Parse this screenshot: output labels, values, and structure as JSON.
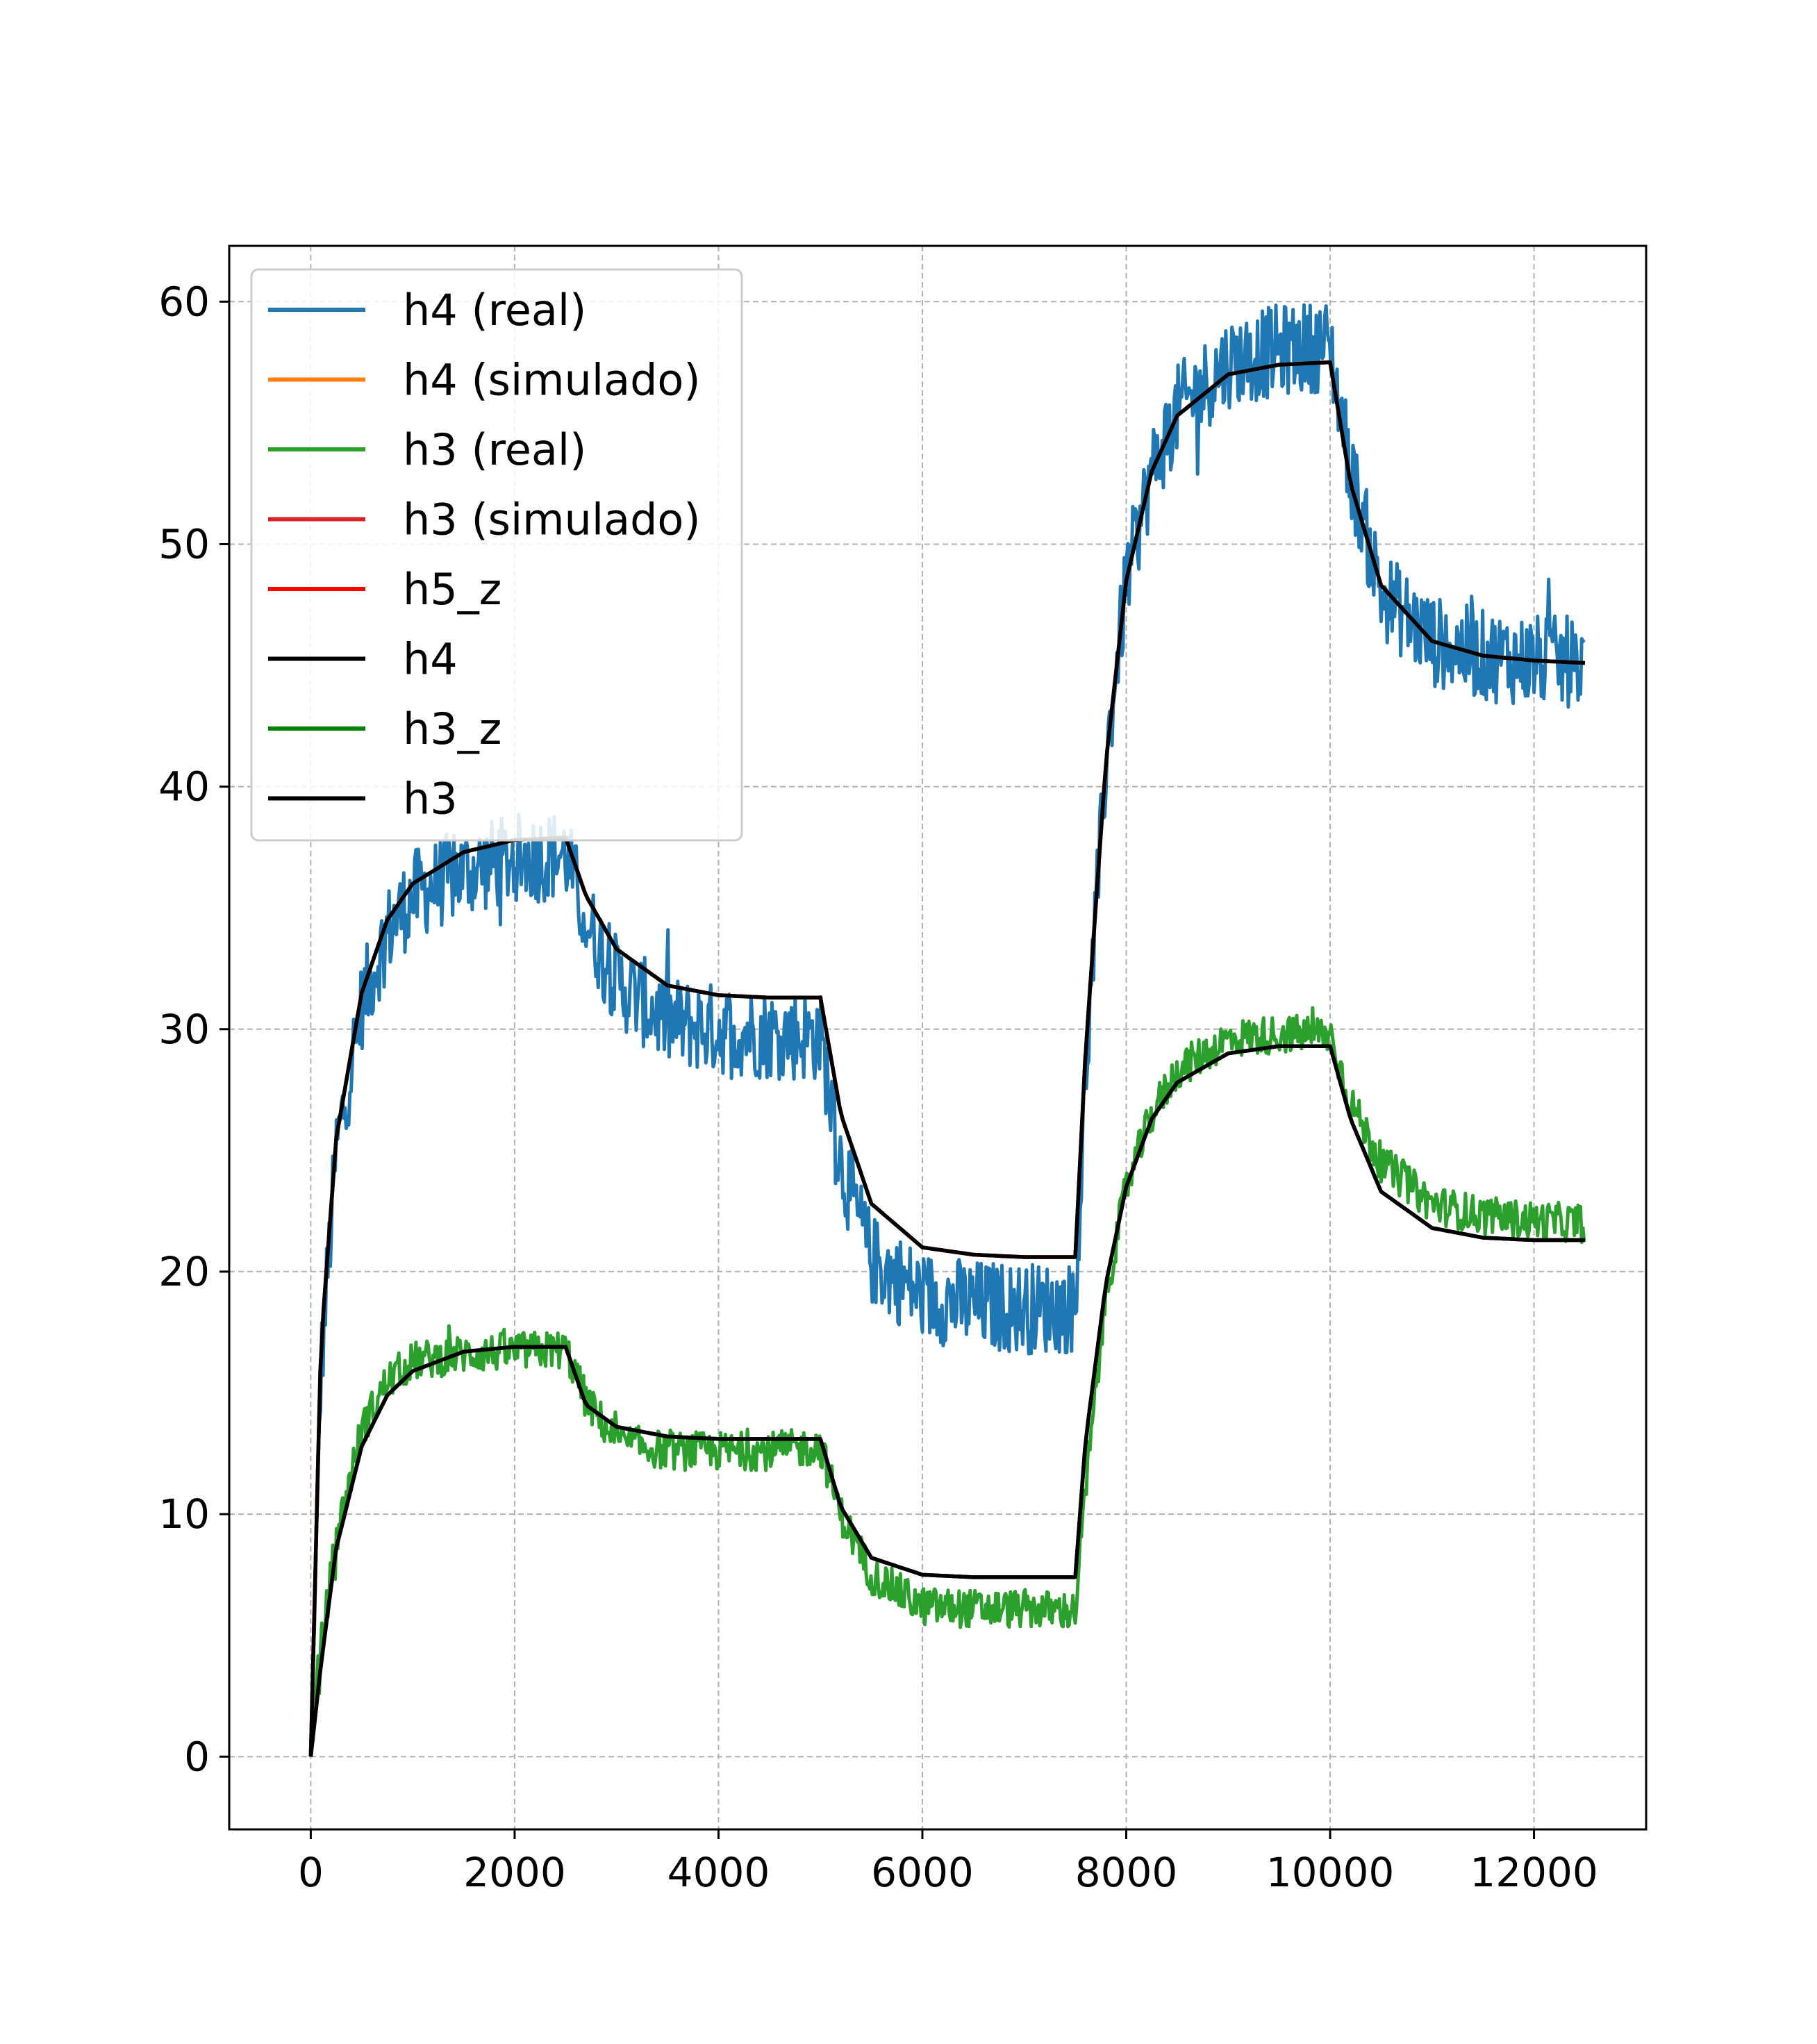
{
  "chart_data": {
    "type": "line",
    "title": "",
    "xlabel": "",
    "ylabel": "",
    "xlim": [
      -800,
      13100
    ],
    "ylim": [
      -3,
      62.3
    ],
    "xticks": [
      0,
      2000,
      4000,
      6000,
      8000,
      10000,
      12000
    ],
    "yticks": [
      0,
      10,
      20,
      30,
      40,
      50,
      60
    ],
    "xtick_labels": [
      "0",
      "2000",
      "4000",
      "6000",
      "8000",
      "10000",
      "12000"
    ],
    "ytick_labels": [
      "0",
      "10",
      "20",
      "30",
      "40",
      "50",
      "60"
    ],
    "grid": true,
    "legend": {
      "placement": "top-left",
      "entries": [
        "h4 (real)",
        "h4 (simulado)",
        "h3 (real)",
        "h3 (simulado)",
        "h5_z",
        "h4",
        "h3_z",
        "h3"
      ]
    },
    "series": [
      {
        "name": "h4 (real)",
        "color": "#1f77b4",
        "style": "noisy",
        "noise": 1.9,
        "x": [
          0,
          100,
          250,
          500,
          750,
          1000,
          1500,
          2000,
          2500,
          2700,
          3000,
          3500,
          4000,
          4500,
          5000,
          5200,
          5500,
          6000,
          6500,
          7000,
          7500,
          7600,
          7800,
          8000,
          8250,
          8500,
          9000,
          9500,
          10000,
          10200,
          10500,
          11000,
          11500,
          12000,
          12500
        ],
        "y": [
          0,
          16,
          25,
          31,
          34,
          35.5,
          36.5,
          37,
          37.2,
          34.5,
          32,
          30.3,
          30,
          29.8,
          29.7,
          24.5,
          20.5,
          19,
          18.6,
          18.5,
          18.5,
          28,
          41,
          48.5,
          53,
          55.5,
          57.5,
          58,
          58.2,
          53,
          48,
          46,
          45.4,
          45.2,
          45.1
        ]
      },
      {
        "name": "h4 (simulado)",
        "color": "#ff7f0e",
        "x": [
          0,
          100,
          250,
          500,
          750,
          1000,
          1500,
          2000,
          2500,
          2700,
          3000,
          3500,
          4000,
          4500,
          5000,
          5200,
          5500,
          6000,
          6500,
          7000,
          7500,
          7600,
          7800,
          8000,
          8250,
          8500,
          9000,
          9500,
          10000,
          10200,
          10500,
          11000,
          11500,
          12000,
          12500
        ],
        "y": [
          0,
          17,
          25.5,
          31.5,
          34.5,
          36,
          37.3,
          37.8,
          37.9,
          35.5,
          33.3,
          31.8,
          31.4,
          31.3,
          31.3,
          26.5,
          22.8,
          21,
          20.7,
          20.6,
          20.6,
          29,
          41,
          48.5,
          53,
          55.3,
          57,
          57.4,
          57.5,
          52.5,
          48.3,
          46,
          45.4,
          45.2,
          45.1
        ]
      },
      {
        "name": "h3 (real)",
        "color": "#2ca02c",
        "style": "noisy",
        "noise": 0.8,
        "x": [
          0,
          100,
          250,
          500,
          750,
          1000,
          1500,
          2000,
          2500,
          2700,
          3000,
          3500,
          4000,
          4500,
          5000,
          5200,
          5500,
          6000,
          6500,
          7000,
          7500,
          7600,
          7800,
          8000,
          8250,
          8500,
          9000,
          9500,
          10000,
          10200,
          10500,
          11000,
          11500,
          12000,
          12500
        ],
        "y": [
          0.5,
          4.5,
          9,
          13.5,
          15.5,
          16.3,
          16.6,
          16.7,
          16.8,
          14.7,
          13,
          12.6,
          12.6,
          12.6,
          12.8,
          10,
          7.5,
          6.2,
          6.1,
          6.1,
          6,
          11,
          19,
          23.5,
          26.5,
          28.3,
          29.6,
          29.8,
          29.8,
          27,
          24.5,
          22.8,
          22.3,
          22.1,
          22
        ]
      },
      {
        "name": "h3 (simulado)",
        "color": "#d62728",
        "x": [
          0,
          100,
          250,
          500,
          750,
          1000,
          1500,
          2000,
          2500,
          2700,
          3000,
          3500,
          4000,
          4500,
          5000,
          5200,
          5500,
          6000,
          6500,
          7000,
          7500,
          7600,
          7800,
          8000,
          8250,
          8500,
          9000,
          9500,
          10000,
          10200,
          10500,
          11000,
          11500,
          12000,
          12500
        ],
        "y": [
          0,
          3.8,
          8.6,
          12.8,
          14.9,
          15.9,
          16.7,
          16.9,
          16.9,
          14.5,
          13.6,
          13.2,
          13.1,
          13.1,
          13.1,
          10.3,
          8.2,
          7.5,
          7.4,
          7.4,
          7.4,
          13,
          19.5,
          23.5,
          26.3,
          27.8,
          29,
          29.3,
          29.3,
          26.3,
          23.3,
          21.8,
          21.4,
          21.3,
          21.3
        ]
      },
      {
        "name": "h5_z",
        "color": "#ff0000",
        "x": [
          0,
          100,
          250,
          500,
          750,
          1000,
          1500,
          2000,
          2500,
          2700,
          3000,
          3500,
          4000,
          4500,
          5000,
          5200,
          5500,
          6000,
          6500,
          7000,
          7500,
          7600,
          7800,
          8000,
          8250,
          8500,
          9000,
          9500,
          10000,
          10200,
          10500,
          11000,
          11500,
          12000,
          12500
        ],
        "y": [
          0,
          17,
          25.5,
          31.5,
          34.5,
          36,
          37.3,
          37.8,
          37.9,
          35.5,
          33.3,
          31.8,
          31.4,
          31.3,
          31.3,
          26.5,
          22.8,
          21,
          20.7,
          20.6,
          20.6,
          29,
          41,
          48.5,
          53,
          55.3,
          57,
          57.4,
          57.5,
          52.5,
          48.3,
          46,
          45.4,
          45.2,
          45.1
        ]
      },
      {
        "name": "h4",
        "color": "#000000",
        "x": [
          0,
          100,
          250,
          500,
          750,
          1000,
          1500,
          2000,
          2500,
          2700,
          3000,
          3500,
          4000,
          4500,
          5000,
          5200,
          5500,
          6000,
          6500,
          7000,
          7500,
          7600,
          7800,
          8000,
          8250,
          8500,
          9000,
          9500,
          10000,
          10200,
          10500,
          11000,
          11500,
          12000,
          12500
        ],
        "y": [
          0,
          17,
          25.5,
          31.5,
          34.5,
          36,
          37.3,
          37.8,
          37.9,
          35.5,
          33.3,
          31.8,
          31.4,
          31.3,
          31.3,
          26.5,
          22.8,
          21,
          20.7,
          20.6,
          20.6,
          29,
          41,
          48.5,
          53,
          55.3,
          57,
          57.4,
          57.5,
          52.5,
          48.3,
          46,
          45.4,
          45.2,
          45.1
        ]
      },
      {
        "name": "h3_z",
        "color": "#008000",
        "x": [
          0,
          100,
          250,
          500,
          750,
          1000,
          1500,
          2000,
          2500,
          2700,
          3000,
          3500,
          4000,
          4500,
          5000,
          5200,
          5500,
          6000,
          6500,
          7000,
          7500,
          7600,
          7800,
          8000,
          8250,
          8500,
          9000,
          9500,
          10000,
          10200,
          10500,
          11000,
          11500,
          12000,
          12500
        ],
        "y": [
          0,
          3.8,
          8.6,
          12.8,
          14.9,
          15.9,
          16.7,
          16.9,
          16.9,
          14.5,
          13.6,
          13.2,
          13.1,
          13.1,
          13.1,
          10.3,
          8.2,
          7.5,
          7.4,
          7.4,
          7.4,
          13,
          19.5,
          23.5,
          26.3,
          27.8,
          29,
          29.3,
          29.3,
          26.3,
          23.3,
          21.8,
          21.4,
          21.3,
          21.3
        ]
      },
      {
        "name": "h3",
        "color": "#000000",
        "x": [
          0,
          100,
          250,
          500,
          750,
          1000,
          1500,
          2000,
          2500,
          2700,
          3000,
          3500,
          4000,
          4500,
          5000,
          5200,
          5500,
          6000,
          6500,
          7000,
          7500,
          7600,
          7800,
          8000,
          8250,
          8500,
          9000,
          9500,
          10000,
          10200,
          10500,
          11000,
          11500,
          12000,
          12500
        ],
        "y": [
          0,
          3.8,
          8.6,
          12.8,
          14.9,
          15.9,
          16.7,
          16.9,
          16.9,
          14.5,
          13.6,
          13.2,
          13.1,
          13.1,
          13.1,
          10.3,
          8.2,
          7.5,
          7.4,
          7.4,
          7.4,
          13,
          19.5,
          23.5,
          26.3,
          27.8,
          29,
          29.3,
          29.3,
          26.3,
          23.3,
          21.8,
          21.4,
          21.3,
          21.3
        ]
      }
    ]
  }
}
